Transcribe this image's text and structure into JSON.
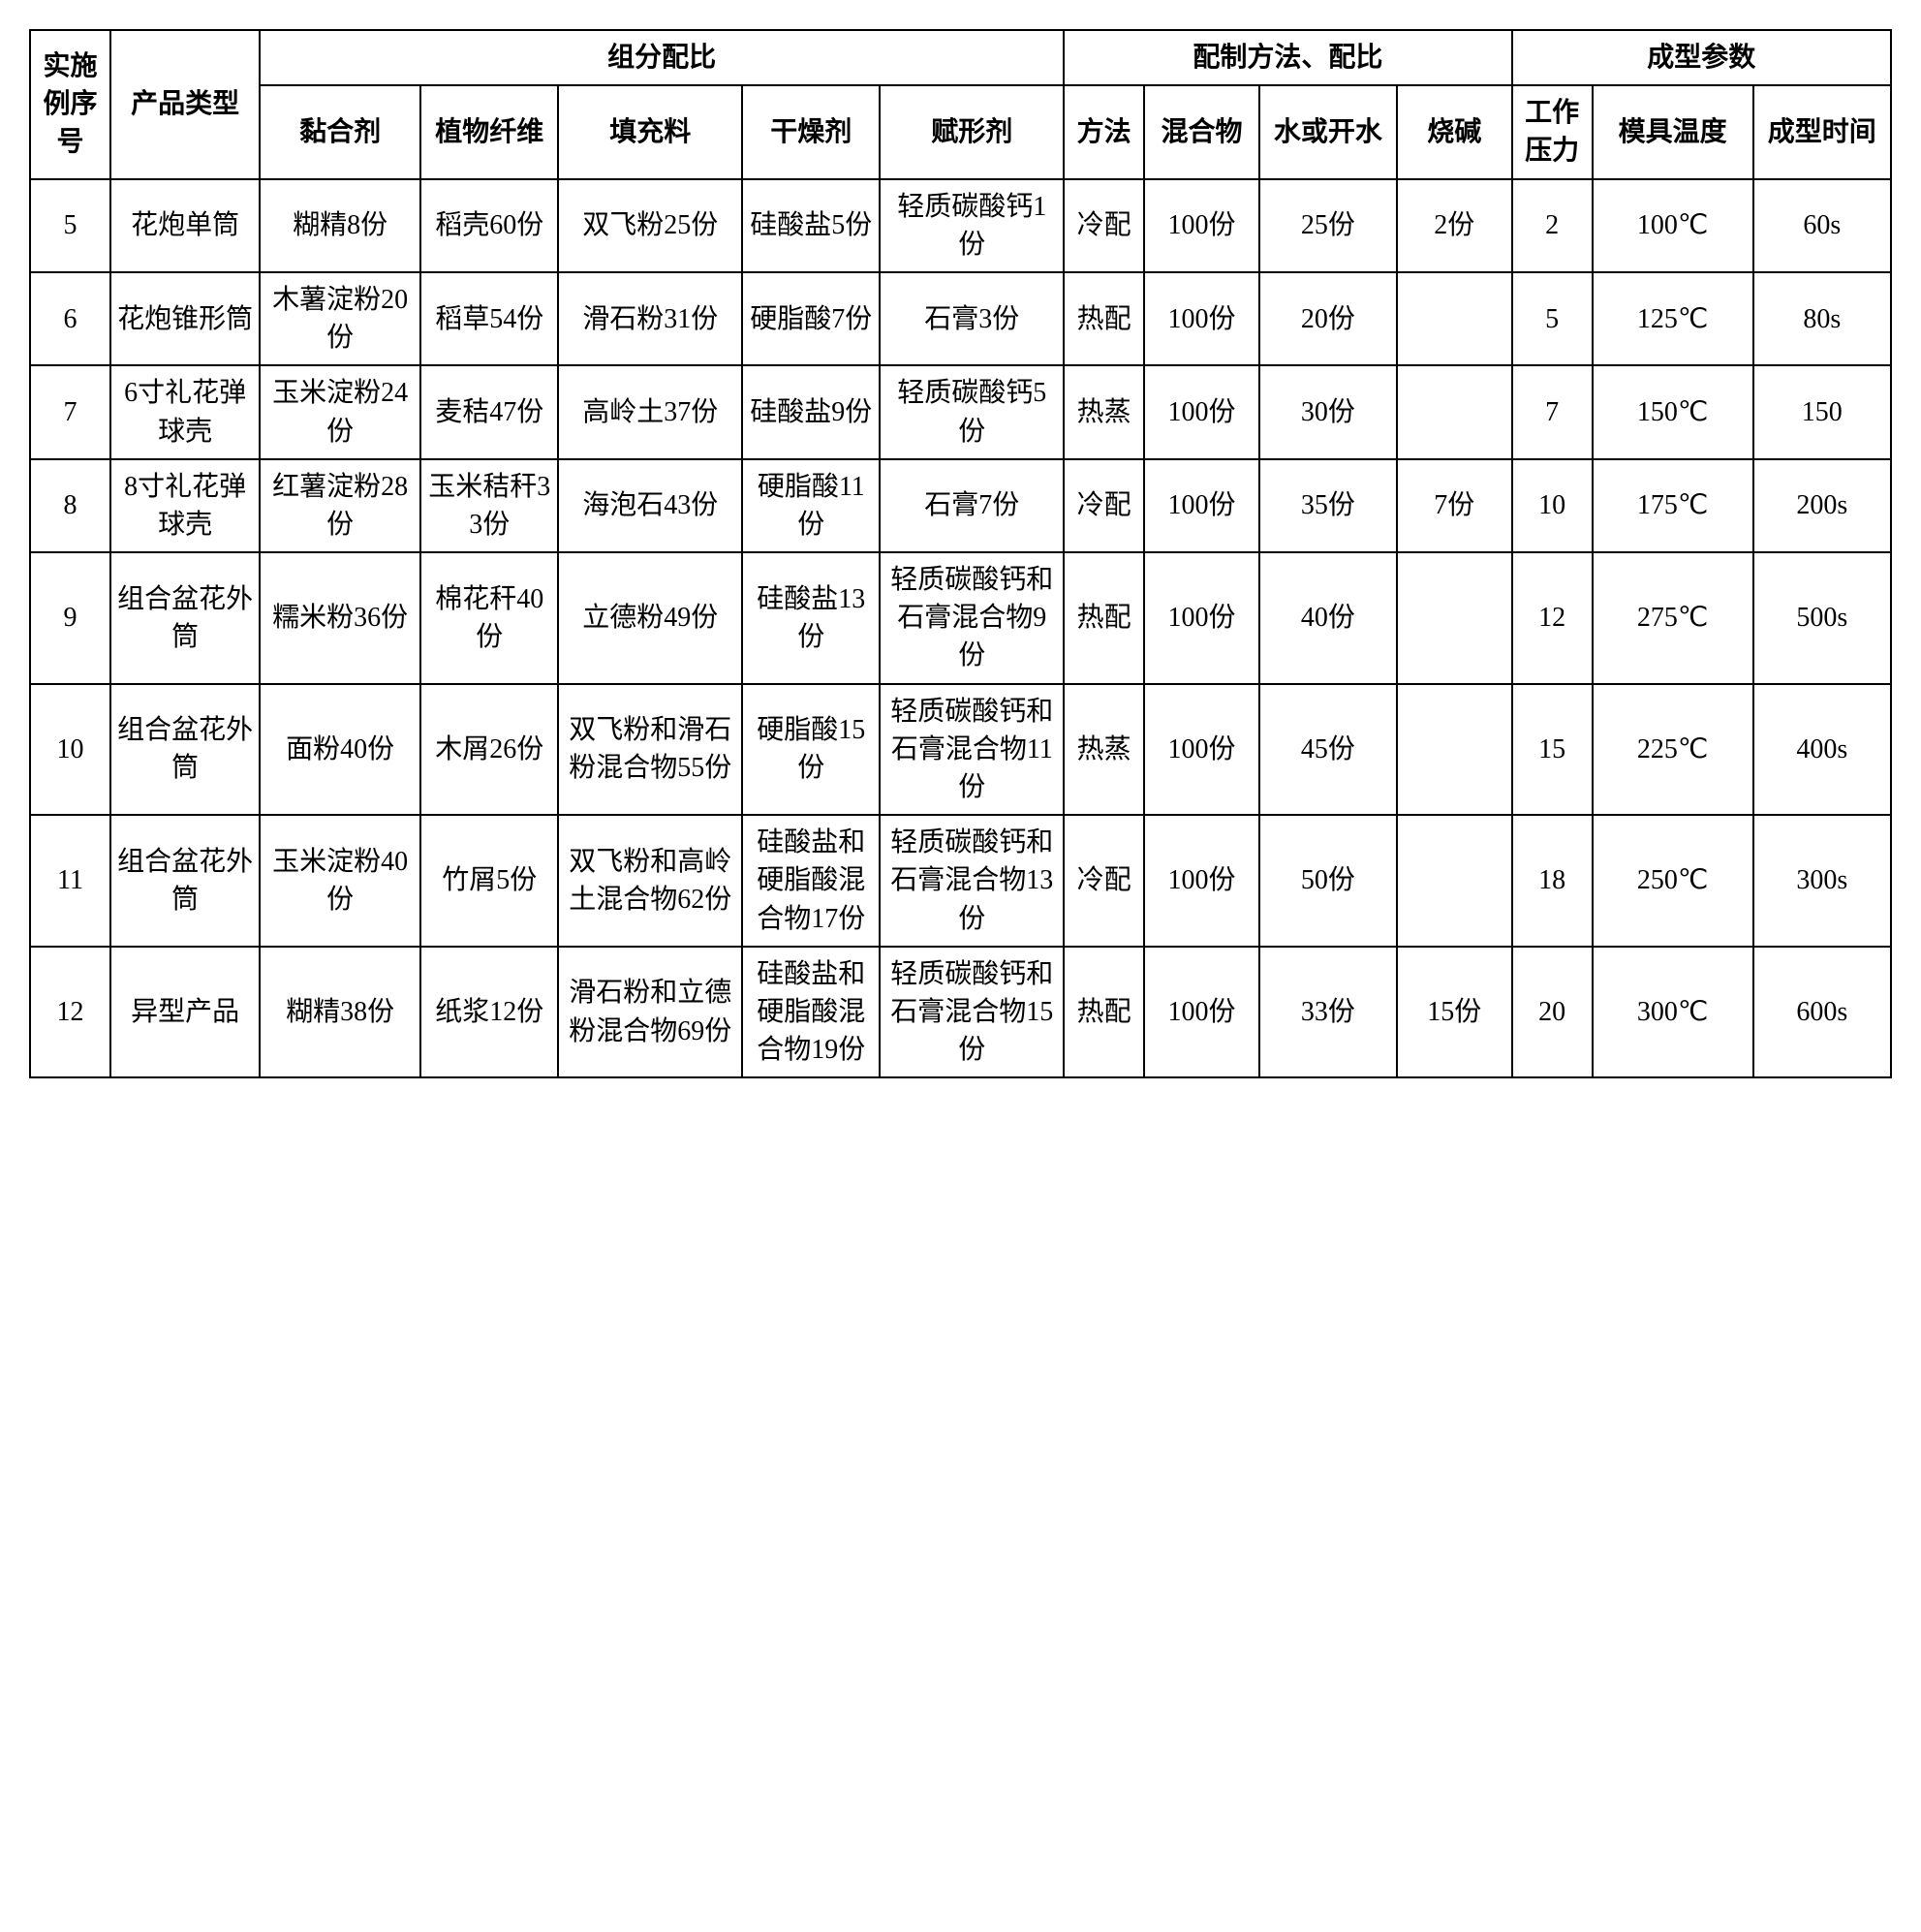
{
  "headers": {
    "seq": "实施例序号",
    "type": "产品类型",
    "group1": "组分配比",
    "group2": "配制方法、配比",
    "group3": "成型参数",
    "c1": "黏合剂",
    "c2": "植物纤维",
    "c3": "填充料",
    "c4": "干燥剂",
    "c5": "赋形剂",
    "m1": "方法",
    "m2": "混合物",
    "m3": "水或开水",
    "m4": "烧碱",
    "p1": "工作压力",
    "p2": "模具温度",
    "p3": "成型时间"
  },
  "rows": [
    {
      "seq": "5",
      "type": "花炮单筒",
      "c1": "糊精8份",
      "c2": "稻壳60份",
      "c3": "双飞粉25份",
      "c4": "硅酸盐5份",
      "c5": "轻质碳酸钙1份",
      "m1": "冷配",
      "m2": "100份",
      "m3": "25份",
      "m4": "2份",
      "p1": "2",
      "p2": "100℃",
      "p3": "60s"
    },
    {
      "seq": "6",
      "type": "花炮锥形筒",
      "c1": "木薯淀粉20份",
      "c2": "稻草54份",
      "c3": "滑石粉31份",
      "c4": "硬脂酸7份",
      "c5": "石膏3份",
      "m1": "热配",
      "m2": "100份",
      "m3": "20份",
      "m4": "",
      "p1": "5",
      "p2": "125℃",
      "p3": "80s"
    },
    {
      "seq": "7",
      "type": "6寸礼花弹球壳",
      "c1": "玉米淀粉24份",
      "c2": "麦秸47份",
      "c3": "高岭土37份",
      "c4": "硅酸盐9份",
      "c5": "轻质碳酸钙5份",
      "m1": "热蒸",
      "m2": "100份",
      "m3": "30份",
      "m4": "",
      "p1": "7",
      "p2": "150℃",
      "p3": "150"
    },
    {
      "seq": "8",
      "type": "8寸礼花弹球壳",
      "c1": "红薯淀粉28份",
      "c2": "玉米秸秆33份",
      "c3": "海泡石43份",
      "c4": "硬脂酸11份",
      "c5": "石膏7份",
      "m1": "冷配",
      "m2": "100份",
      "m3": "35份",
      "m4": "7份",
      "p1": "10",
      "p2": "175℃",
      "p3": "200s"
    },
    {
      "seq": "9",
      "type": "组合盆花外筒",
      "c1": "糯米粉36份",
      "c2": "棉花秆40份",
      "c3": "立德粉49份",
      "c4": "硅酸盐13份",
      "c5": "轻质碳酸钙和石膏混合物9份",
      "m1": "热配",
      "m2": "100份",
      "m3": "40份",
      "m4": "",
      "p1": "12",
      "p2": "275℃",
      "p3": "500s"
    },
    {
      "seq": "10",
      "type": "组合盆花外筒",
      "c1": "面粉40份",
      "c2": "木屑26份",
      "c3": "双飞粉和滑石粉混合物55份",
      "c4": "硬脂酸15份",
      "c5": "轻质碳酸钙和石膏混合物11份",
      "m1": "热蒸",
      "m2": "100份",
      "m3": "45份",
      "m4": "",
      "p1": "15",
      "p2": "225℃",
      "p3": "400s"
    },
    {
      "seq": "11",
      "type": "组合盆花外筒",
      "c1": "玉米淀粉40份",
      "c2": "竹屑5份",
      "c3": "双飞粉和高岭土混合物62份",
      "c4": "硅酸盐和硬脂酸混合物17份",
      "c5": "轻质碳酸钙和石膏混合物13份",
      "m1": "冷配",
      "m2": "100份",
      "m3": "50份",
      "m4": "",
      "p1": "18",
      "p2": "250℃",
      "p3": "300s"
    },
    {
      "seq": "12",
      "type": "异型产品",
      "c1": "糊精38份",
      "c2": "纸浆12份",
      "c3": "滑石粉和立德粉混合物69份",
      "c4": "硅酸盐和硬脂酸混合物19份",
      "c5": "轻质碳酸钙和石膏混合物15份",
      "m1": "热配",
      "m2": "100份",
      "m3": "33份",
      "m4": "15份",
      "p1": "20",
      "p2": "300℃",
      "p3": "600s"
    }
  ]
}
